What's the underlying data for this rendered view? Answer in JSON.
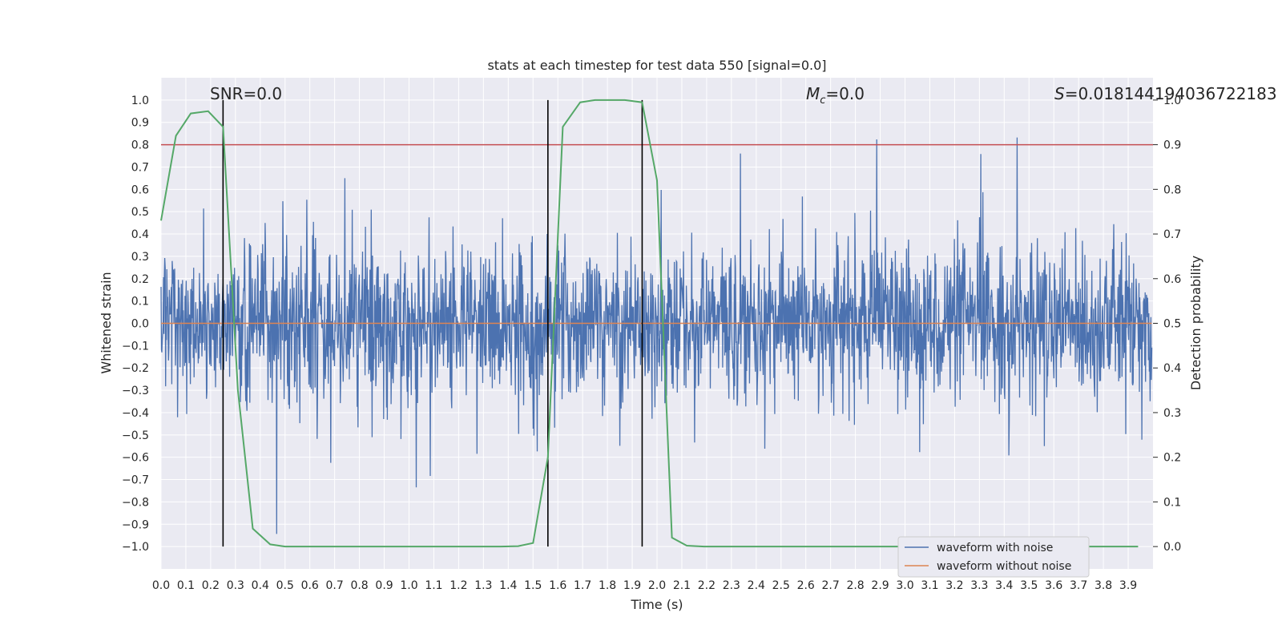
{
  "chart_data": {
    "type": "line",
    "title": "stats at each timestep for test data 550 [signal=0.0]",
    "xlabel": "Time (s)",
    "ylabel": "Whitened strain",
    "y2label": "Detection probability",
    "xlim": [
      0.0,
      4.0
    ],
    "ylim": [
      -1.1,
      1.1
    ],
    "y2lim": [
      -0.05,
      1.05
    ],
    "xticks": [
      "0.0",
      "0.1",
      "0.2",
      "0.3",
      "0.4",
      "0.5",
      "0.6",
      "0.7",
      "0.8",
      "0.9",
      "1.0",
      "1.1",
      "1.2",
      "1.3",
      "1.4",
      "1.5",
      "1.6",
      "1.7",
      "1.8",
      "1.9",
      "2.0",
      "2.1",
      "2.2",
      "2.3",
      "2.4",
      "2.5",
      "2.6",
      "2.7",
      "2.8",
      "2.9",
      "3.0",
      "3.1",
      "3.2",
      "3.3",
      "3.4",
      "3.5",
      "3.6",
      "3.7",
      "3.8",
      "3.9"
    ],
    "yticks": [
      "1.0",
      "0.9",
      "0.8",
      "0.7",
      "0.6",
      "0.5",
      "0.4",
      "0.3",
      "0.2",
      "0.1",
      "0.0",
      "-0.1",
      "-0.2",
      "-0.3",
      "-0.4",
      "-0.5",
      "-0.6",
      "-0.7",
      "-0.8",
      "-0.9",
      "-1.0"
    ],
    "y2ticks": [
      "1.0",
      "0.9",
      "0.8",
      "0.7",
      "0.6",
      "0.5",
      "0.4",
      "0.3",
      "0.2",
      "0.1",
      "0.0"
    ],
    "annotations": {
      "snr": "SNR=0.0",
      "mc_symbol": "M",
      "mc_sub": "c",
      "mc_value": "=0.0",
      "s_symbol": "S",
      "s_value": "=0.018144194036722183"
    },
    "threshold": {
      "y": 0.8,
      "color": "#c44e52"
    },
    "vlines": [
      0.25,
      1.56,
      1.94
    ],
    "noise": {
      "n": 2400,
      "sigma": 0.17,
      "color": "#4c72b0"
    },
    "series": [
      {
        "name": "waveform with noise",
        "color": "#4c72b0"
      },
      {
        "name": "waveform without noise",
        "color": "#dd8452",
        "values": [
          0.0
        ]
      },
      {
        "name": "detection probability",
        "color": "#55a868",
        "axis": "right",
        "x": [
          0.0,
          0.06,
          0.12,
          0.19,
          0.25,
          0.31,
          0.37,
          0.44,
          0.5,
          0.56,
          0.62,
          0.69,
          0.75,
          0.81,
          0.87,
          0.94,
          1.0,
          1.06,
          1.12,
          1.19,
          1.25,
          1.31,
          1.37,
          1.44,
          1.5,
          1.56,
          1.62,
          1.69,
          1.75,
          1.81,
          1.87,
          1.94,
          2.0,
          2.06,
          2.12,
          2.19,
          2.25,
          2.31,
          2.37,
          2.44,
          2.5,
          2.56,
          2.62,
          2.69,
          2.75,
          2.81,
          2.87,
          2.94,
          3.0,
          3.06,
          3.12,
          3.19,
          3.25,
          3.31,
          3.37,
          3.44,
          3.5,
          3.56,
          3.62,
          3.69,
          3.75,
          3.81,
          3.87,
          3.94
        ],
        "values": [
          0.73,
          0.92,
          0.97,
          0.975,
          0.94,
          0.35,
          0.04,
          0.005,
          0.0,
          0.0,
          0.0,
          0.0,
          0.0,
          0.0,
          0.0,
          0.0,
          0.0,
          0.0,
          0.0,
          0.0,
          0.0,
          0.0,
          0.0,
          0.001,
          0.008,
          0.2,
          0.94,
          0.995,
          1.0,
          1.0,
          1.0,
          0.995,
          0.82,
          0.02,
          0.002,
          0.0,
          0.0,
          0.0,
          0.0,
          0.0,
          0.0,
          0.0,
          0.0,
          0.0,
          0.0,
          0.0,
          0.0,
          0.0,
          0.0,
          0.0,
          0.0,
          0.0,
          0.0,
          0.0,
          0.0,
          0.0,
          0.0,
          0.0,
          0.0,
          0.0,
          0.0,
          0.0,
          0.0,
          0.0
        ]
      }
    ],
    "legend": {
      "placement": "bottom-right",
      "entries": [
        "waveform with noise",
        "waveform without noise"
      ]
    }
  }
}
